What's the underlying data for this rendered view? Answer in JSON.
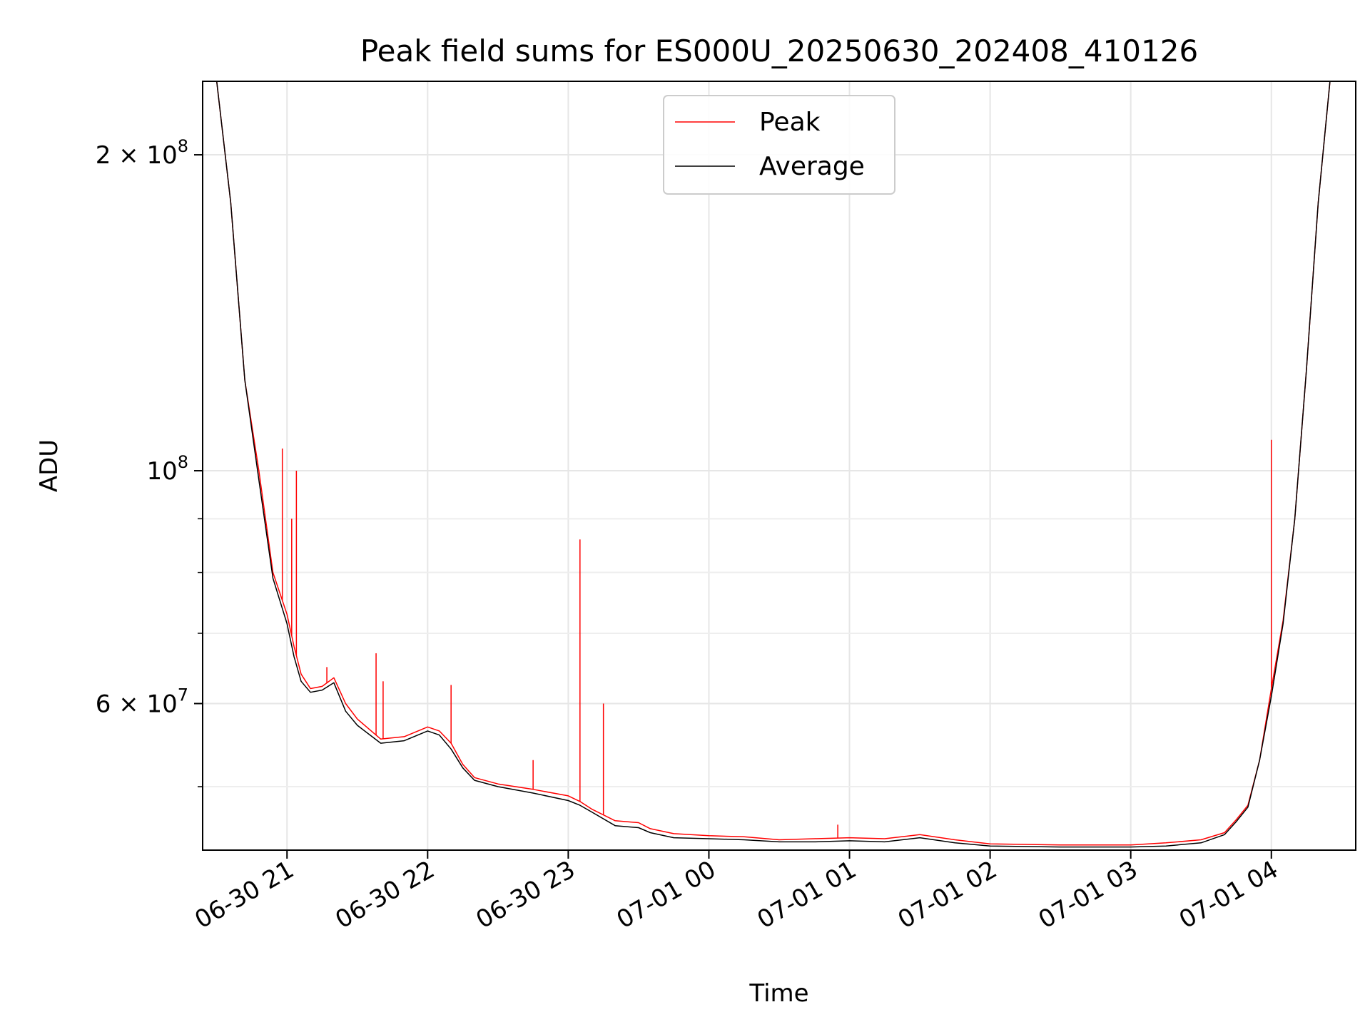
{
  "chart_data": {
    "type": "line",
    "title": "Peak field sums for ES000U_20250630_202408_410126",
    "xlabel": "Time",
    "ylabel": "ADU",
    "y_scale": "log",
    "ylim": [
      43500000,
      235000000
    ],
    "xlim": [
      "2025-06-30 20:24",
      "2025-07-01 04:36"
    ],
    "grid": true,
    "legend_position": "top-center",
    "x_ticks": [
      {
        "t": "2025-06-30 21:00",
        "label": "06-30 21"
      },
      {
        "t": "2025-06-30 22:00",
        "label": "06-30 22"
      },
      {
        "t": "2025-06-30 23:00",
        "label": "06-30 23"
      },
      {
        "t": "2025-07-01 00:00",
        "label": "07-01 00"
      },
      {
        "t": "2025-07-01 01:00",
        "label": "07-01 01"
      },
      {
        "t": "2025-07-01 02:00",
        "label": "07-01 02"
      },
      {
        "t": "2025-07-01 03:00",
        "label": "07-01 03"
      },
      {
        "t": "2025-07-01 04:00",
        "label": "07-01 04"
      }
    ],
    "y_ticks_major": [
      {
        "value": 60000000,
        "mantissa": "6",
        "base": "10",
        "exp": "7"
      },
      {
        "value": 100000000,
        "mantissa": "",
        "base": "10",
        "exp": "8"
      },
      {
        "value": 200000000,
        "mantissa": "2",
        "base": "10",
        "exp": "8"
      }
    ],
    "y_ticks_minor": [
      50000000,
      70000000,
      80000000,
      90000000,
      300000000
    ],
    "series": [
      {
        "name": "Peak",
        "color": "#ff0000",
        "linewidth": 1.5,
        "x": [
          "2025-06-30 20:24",
          "2025-06-30 20:30",
          "2025-06-30 20:36",
          "2025-06-30 20:42",
          "2025-06-30 20:48",
          "2025-06-30 20:54",
          "2025-06-30 21:00",
          "2025-06-30 21:03",
          "2025-06-30 21:06",
          "2025-06-30 21:10",
          "2025-06-30 21:15",
          "2025-06-30 21:20",
          "2025-06-30 21:25",
          "2025-06-30 21:30",
          "2025-06-30 21:40",
          "2025-06-30 21:50",
          "2025-06-30 22:00",
          "2025-06-30 22:05",
          "2025-06-30 22:10",
          "2025-06-30 22:15",
          "2025-06-30 22:20",
          "2025-06-30 22:30",
          "2025-06-30 22:45",
          "2025-06-30 23:00",
          "2025-06-30 23:05",
          "2025-06-30 23:10",
          "2025-06-30 23:20",
          "2025-06-30 23:30",
          "2025-06-30 23:35",
          "2025-06-30 23:45",
          "2025-07-01 00:00",
          "2025-07-01 00:15",
          "2025-07-01 00:30",
          "2025-07-01 00:45",
          "2025-07-01 01:00",
          "2025-07-01 01:15",
          "2025-07-01 01:30",
          "2025-07-01 01:45",
          "2025-07-01 02:00",
          "2025-07-01 02:30",
          "2025-07-01 03:00",
          "2025-07-01 03:15",
          "2025-07-01 03:30",
          "2025-07-01 03:40",
          "2025-07-01 03:45",
          "2025-07-01 03:50",
          "2025-07-01 03:55",
          "2025-07-01 04:00",
          "2025-07-01 04:05",
          "2025-07-01 04:10",
          "2025-07-01 04:15",
          "2025-07-01 04:20",
          "2025-07-01 04:25",
          "2025-07-01 04:30",
          "2025-07-01 04:36"
        ],
        "y": [
          235000000,
          235000000,
          180000000,
          122000000,
          100000000,
          80000000,
          73000000,
          68000000,
          64000000,
          62000000,
          62300000,
          63500000,
          60000000,
          58000000,
          55500000,
          55800000,
          57000000,
          56500000,
          55000000,
          52500000,
          51000000,
          50300000,
          49700000,
          49000000,
          48400000,
          47600000,
          46400000,
          46200000,
          45600000,
          45100000,
          44900000,
          44800000,
          44500000,
          44600000,
          44700000,
          44600000,
          45000000,
          44500000,
          44100000,
          44000000,
          44000000,
          44200000,
          44500000,
          45200000,
          46500000,
          48000000,
          53000000,
          62000000,
          72000000,
          90000000,
          125000000,
          180000000,
          235000000,
          235000000,
          235000000
        ]
      },
      {
        "name": "Average",
        "color": "#000000",
        "linewidth": 1.5,
        "x": [
          "2025-06-30 20:24",
          "2025-06-30 20:30",
          "2025-06-30 20:36",
          "2025-06-30 20:42",
          "2025-06-30 20:48",
          "2025-06-30 20:54",
          "2025-06-30 21:00",
          "2025-06-30 21:03",
          "2025-06-30 21:06",
          "2025-06-30 21:10",
          "2025-06-30 21:15",
          "2025-06-30 21:20",
          "2025-06-30 21:25",
          "2025-06-30 21:30",
          "2025-06-30 21:40",
          "2025-06-30 21:50",
          "2025-06-30 22:00",
          "2025-06-30 22:05",
          "2025-06-30 22:10",
          "2025-06-30 22:15",
          "2025-06-30 22:20",
          "2025-06-30 22:30",
          "2025-06-30 22:45",
          "2025-06-30 23:00",
          "2025-06-30 23:05",
          "2025-06-30 23:10",
          "2025-06-30 23:20",
          "2025-06-30 23:30",
          "2025-06-30 23:35",
          "2025-06-30 23:45",
          "2025-07-01 00:00",
          "2025-07-01 00:15",
          "2025-07-01 00:30",
          "2025-07-01 00:45",
          "2025-07-01 01:00",
          "2025-07-01 01:15",
          "2025-07-01 01:30",
          "2025-07-01 01:45",
          "2025-07-01 02:00",
          "2025-07-01 02:30",
          "2025-07-01 03:00",
          "2025-07-01 03:15",
          "2025-07-01 03:30",
          "2025-07-01 03:40",
          "2025-07-01 03:45",
          "2025-07-01 03:50",
          "2025-07-01 03:55",
          "2025-07-01 04:00",
          "2025-07-01 04:05",
          "2025-07-01 04:10",
          "2025-07-01 04:15",
          "2025-07-01 04:20",
          "2025-07-01 04:25",
          "2025-07-01 04:30",
          "2025-07-01 04:36"
        ],
        "y": [
          235000000,
          235000000,
          180000000,
          122000000,
          98000000,
          79000000,
          71500000,
          66500000,
          63000000,
          61500000,
          61800000,
          62800000,
          59000000,
          57200000,
          55000000,
          55300000,
          56500000,
          56000000,
          54300000,
          52100000,
          50700000,
          50000000,
          49300000,
          48500000,
          48000000,
          47300000,
          45900000,
          45700000,
          45200000,
          44700000,
          44600000,
          44500000,
          44300000,
          44300000,
          44400000,
          44300000,
          44700000,
          44200000,
          43900000,
          43800000,
          43800000,
          43900000,
          44200000,
          45000000,
          46300000,
          47800000,
          53000000,
          61000000,
          71500000,
          90000000,
          125000000,
          180000000,
          235000000,
          235000000,
          235000000
        ]
      }
    ],
    "spikes": [
      {
        "series": "Peak",
        "t": "2025-06-30 20:58",
        "y": 105000000
      },
      {
        "series": "Peak",
        "t": "2025-06-30 21:02",
        "y": 90000000
      },
      {
        "series": "Peak",
        "t": "2025-06-30 21:04",
        "y": 100000000
      },
      {
        "series": "Peak",
        "t": "2025-06-30 21:17",
        "y": 65000000
      },
      {
        "series": "Peak",
        "t": "2025-06-30 21:38",
        "y": 67000000
      },
      {
        "series": "Peak",
        "t": "2025-06-30 21:41",
        "y": 63000000
      },
      {
        "series": "Peak",
        "t": "2025-06-30 22:10",
        "y": 62500000
      },
      {
        "series": "Peak",
        "t": "2025-06-30 22:45",
        "y": 53000000
      },
      {
        "series": "Peak",
        "t": "2025-06-30 23:05",
        "y": 86000000
      },
      {
        "series": "Peak",
        "t": "2025-06-30 23:15",
        "y": 60000000
      },
      {
        "series": "Peak",
        "t": "2025-07-01 00:55",
        "y": 46000000
      },
      {
        "series": "Peak",
        "t": "2025-07-01 04:00",
        "y": 107000000
      }
    ],
    "legend": [
      {
        "label": "Peak",
        "color": "#ff0000"
      },
      {
        "label": "Average",
        "color": "#000000"
      }
    ]
  }
}
